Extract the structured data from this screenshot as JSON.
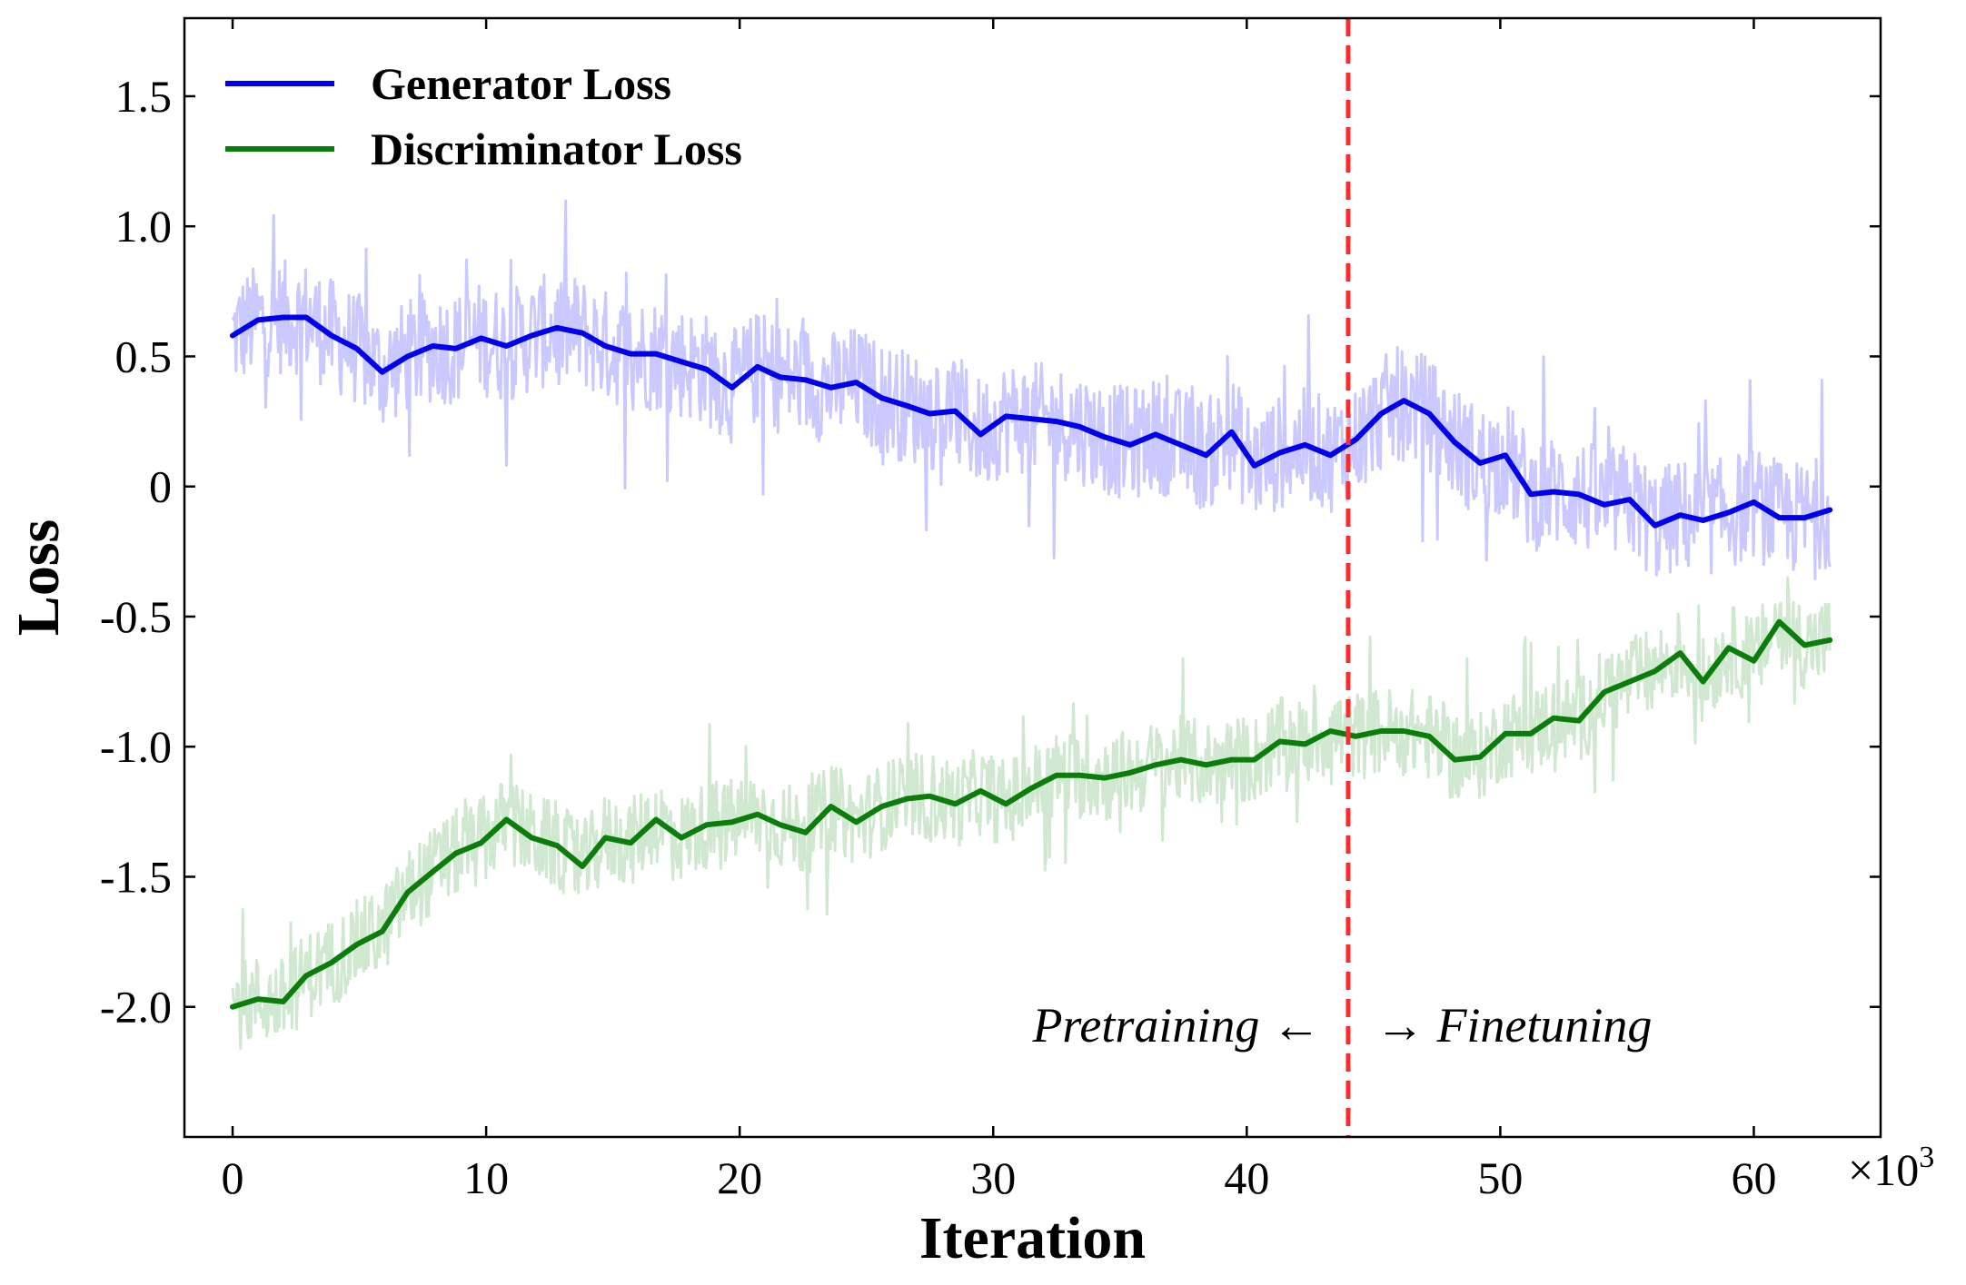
{
  "chart_data": {
    "type": "line",
    "xlabel": "Iteration",
    "ylabel": "Loss",
    "x_multiplier_base": "×10",
    "x_multiplier_exp": "3",
    "xlim": [
      -1.9,
      65.0
    ],
    "ylim": [
      -2.5,
      1.8
    ],
    "xticks": [
      0,
      10,
      20,
      30,
      40,
      50,
      60
    ],
    "xtick_labels": [
      "0",
      "10",
      "20",
      "30",
      "40",
      "50",
      "60"
    ],
    "yticks": [
      1.5,
      1.0,
      0.5,
      0,
      -0.5,
      -1.0,
      -1.5,
      -2.0
    ],
    "ytick_labels": [
      "1.5",
      "1.0",
      "0.5",
      "0",
      "-0.5",
      "-1.0",
      "-1.5",
      "-2.0"
    ],
    "grid": false,
    "legend_position": "top-left",
    "vline": {
      "x": 44.0,
      "color": "#ff2b2b",
      "style": "dashed"
    },
    "annotations": {
      "left": "Pretraining ←",
      "right": "→ Finetuning",
      "x": 44.0,
      "y": -2.07
    },
    "x": [
      0.0,
      1.0,
      2.0,
      2.9,
      3.9,
      4.9,
      5.9,
      6.9,
      7.9,
      8.8,
      9.8,
      10.8,
      11.8,
      12.8,
      13.8,
      14.7,
      15.7,
      16.7,
      17.7,
      18.7,
      19.7,
      20.7,
      21.6,
      22.6,
      23.6,
      24.6,
      25.6,
      26.6,
      27.5,
      28.5,
      29.5,
      30.5,
      31.5,
      32.5,
      33.4,
      34.4,
      35.4,
      36.4,
      37.4,
      38.4,
      39.4,
      40.3,
      41.3,
      42.3,
      43.3,
      44.3,
      45.3,
      46.2,
      47.2,
      48.2,
      49.2,
      50.2,
      51.2,
      52.1,
      53.1,
      54.1,
      55.1,
      56.1,
      57.1,
      58.0,
      59.0,
      60.0,
      61.0,
      62.0,
      63.0
    ],
    "series": [
      {
        "name": "Generator Loss",
        "color": "#0000ee",
        "band_color": "#c9c9ff",
        "values": [
          0.58,
          0.64,
          0.65,
          0.65,
          0.58,
          0.53,
          0.44,
          0.5,
          0.54,
          0.53,
          0.57,
          0.54,
          0.58,
          0.61,
          0.59,
          0.54,
          0.51,
          0.51,
          0.48,
          0.45,
          0.38,
          0.46,
          0.42,
          0.41,
          0.38,
          0.4,
          0.34,
          0.31,
          0.28,
          0.29,
          0.2,
          0.27,
          0.26,
          0.25,
          0.23,
          0.19,
          0.16,
          0.2,
          0.16,
          0.12,
          0.21,
          0.08,
          0.13,
          0.16,
          0.12,
          0.18,
          0.28,
          0.33,
          0.28,
          0.17,
          0.09,
          0.12,
          -0.03,
          -0.02,
          -0.03,
          -0.07,
          -0.05,
          -0.15,
          -0.11,
          -0.13,
          -0.1,
          -0.06,
          -0.12,
          -0.12,
          -0.09
        ]
      },
      {
        "name": "Discriminator Loss",
        "color": "#0a7d0a",
        "band_color": "#cfe8cf",
        "values": [
          -2.0,
          -1.97,
          -1.98,
          -1.88,
          -1.83,
          -1.76,
          -1.71,
          -1.56,
          -1.48,
          -1.41,
          -1.37,
          -1.28,
          -1.35,
          -1.38,
          -1.46,
          -1.35,
          -1.37,
          -1.28,
          -1.35,
          -1.3,
          -1.29,
          -1.26,
          -1.3,
          -1.33,
          -1.23,
          -1.29,
          -1.23,
          -1.2,
          -1.19,
          -1.22,
          -1.17,
          -1.22,
          -1.16,
          -1.11,
          -1.11,
          -1.12,
          -1.1,
          -1.07,
          -1.05,
          -1.07,
          -1.05,
          -1.05,
          -0.98,
          -0.99,
          -0.94,
          -0.96,
          -0.94,
          -0.94,
          -0.96,
          -1.05,
          -1.04,
          -0.95,
          -0.95,
          -0.89,
          -0.9,
          -0.79,
          -0.75,
          -0.71,
          -0.64,
          -0.75,
          -0.62,
          -0.67,
          -0.52,
          -0.61,
          -0.59
        ]
      }
    ]
  }
}
